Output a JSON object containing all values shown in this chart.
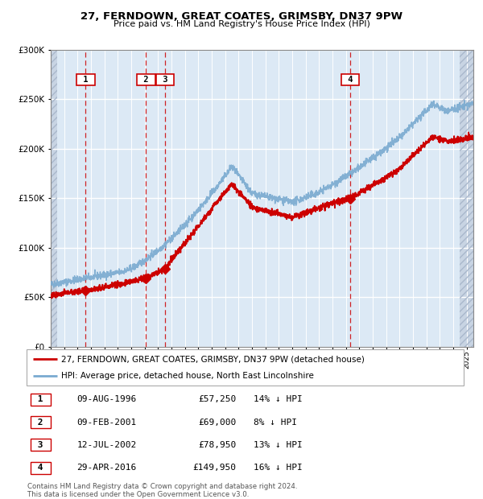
{
  "title": "27, FERNDOWN, GREAT COATES, GRIMSBY, DN37 9PW",
  "subtitle": "Price paid vs. HM Land Registry's House Price Index (HPI)",
  "legend_line1": "27, FERNDOWN, GREAT COATES, GRIMSBY, DN37 9PW (detached house)",
  "legend_line2": "HPI: Average price, detached house, North East Lincolnshire",
  "footer1": "Contains HM Land Registry data © Crown copyright and database right 2024.",
  "footer2": "This data is licensed under the Open Government Licence v3.0.",
  "table_entries": [
    {
      "num": 1,
      "date": "09-AUG-1996",
      "price": "£57,250",
      "hpi": "14% ↓ HPI"
    },
    {
      "num": 2,
      "date": "09-FEB-2001",
      "price": "£69,000",
      "hpi": "8% ↓ HPI"
    },
    {
      "num": 3,
      "date": "12-JUL-2002",
      "price": "£78,950",
      "hpi": "13% ↓ HPI"
    },
    {
      "num": 4,
      "date": "29-APR-2016",
      "price": "£149,950",
      "hpi": "16% ↓ HPI"
    }
  ],
  "sale_dates_decimal": [
    1996.608,
    2001.107,
    2002.534,
    2016.33
  ],
  "sale_prices": [
    57250,
    69000,
    78950,
    149950
  ],
  "marker_labels": [
    1,
    2,
    3,
    4
  ],
  "vline_x": [
    1996.608,
    2001.107,
    2002.534,
    2016.33
  ],
  "red_color": "#cc0000",
  "blue_color": "#7aaad0",
  "bg_color": "#dce9f5",
  "ylim": [
    0,
    300000
  ],
  "xlim_start": 1994.0,
  "xlim_end": 2025.5,
  "hatch_left_end": 1994.5,
  "hatch_right_start": 2024.5
}
